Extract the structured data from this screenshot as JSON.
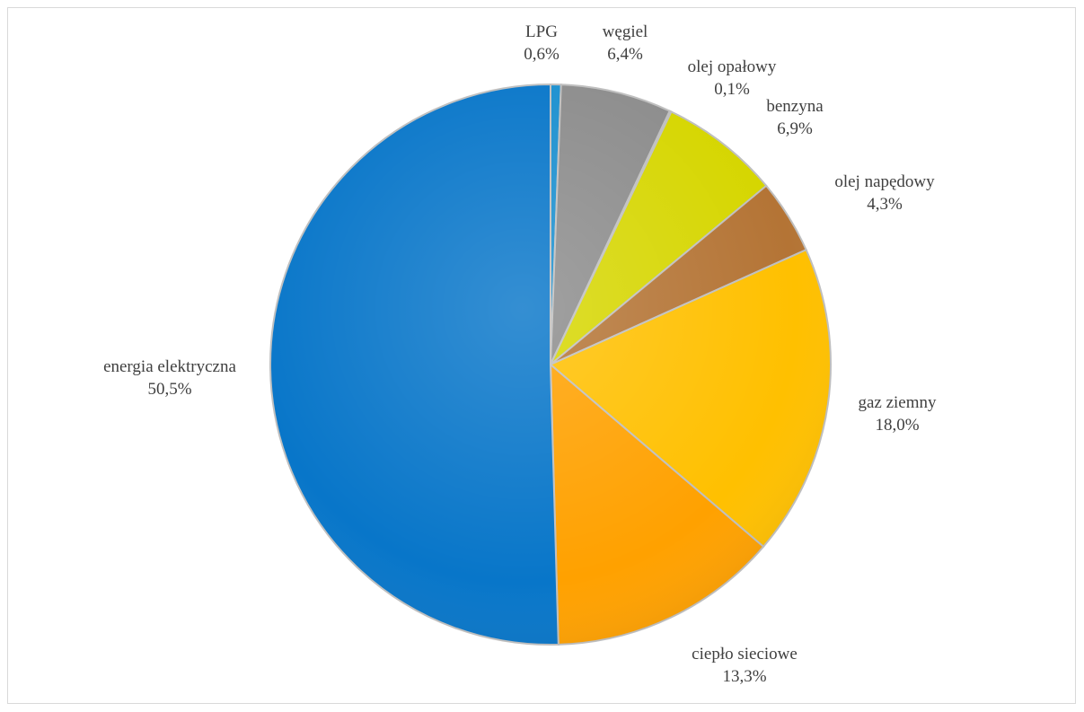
{
  "chart_data": {
    "type": "pie",
    "title": "",
    "slices": [
      {
        "name": "LPG",
        "value": 0.6,
        "value_label": "0,6%",
        "color": "#1a8fcf"
      },
      {
        "name": "węgiel",
        "value": 6.4,
        "value_label": "6,4%",
        "color": "#8c8c8c"
      },
      {
        "name": "olej opałowy",
        "value": 0.1,
        "value_label": "0,1%",
        "color": "#e8ec5a"
      },
      {
        "name": "benzyna",
        "value": 6.9,
        "value_label": "6,9%",
        "color": "#d6d600"
      },
      {
        "name": "olej napędowy",
        "value": 4.3,
        "value_label": "4,3%",
        "color": "#b47435"
      },
      {
        "name": "gaz ziemny",
        "value": 18.0,
        "value_label": "18,0%",
        "color": "#ffc000"
      },
      {
        "name": "ciepło sieciowe",
        "value": 13.3,
        "value_label": "13,3%",
        "color": "#ffa100"
      },
      {
        "name": "energia elektryczna",
        "value": 50.5,
        "value_label": "50,5%",
        "color": "#0876c9"
      }
    ],
    "legend": "none",
    "label_position": "outside"
  }
}
